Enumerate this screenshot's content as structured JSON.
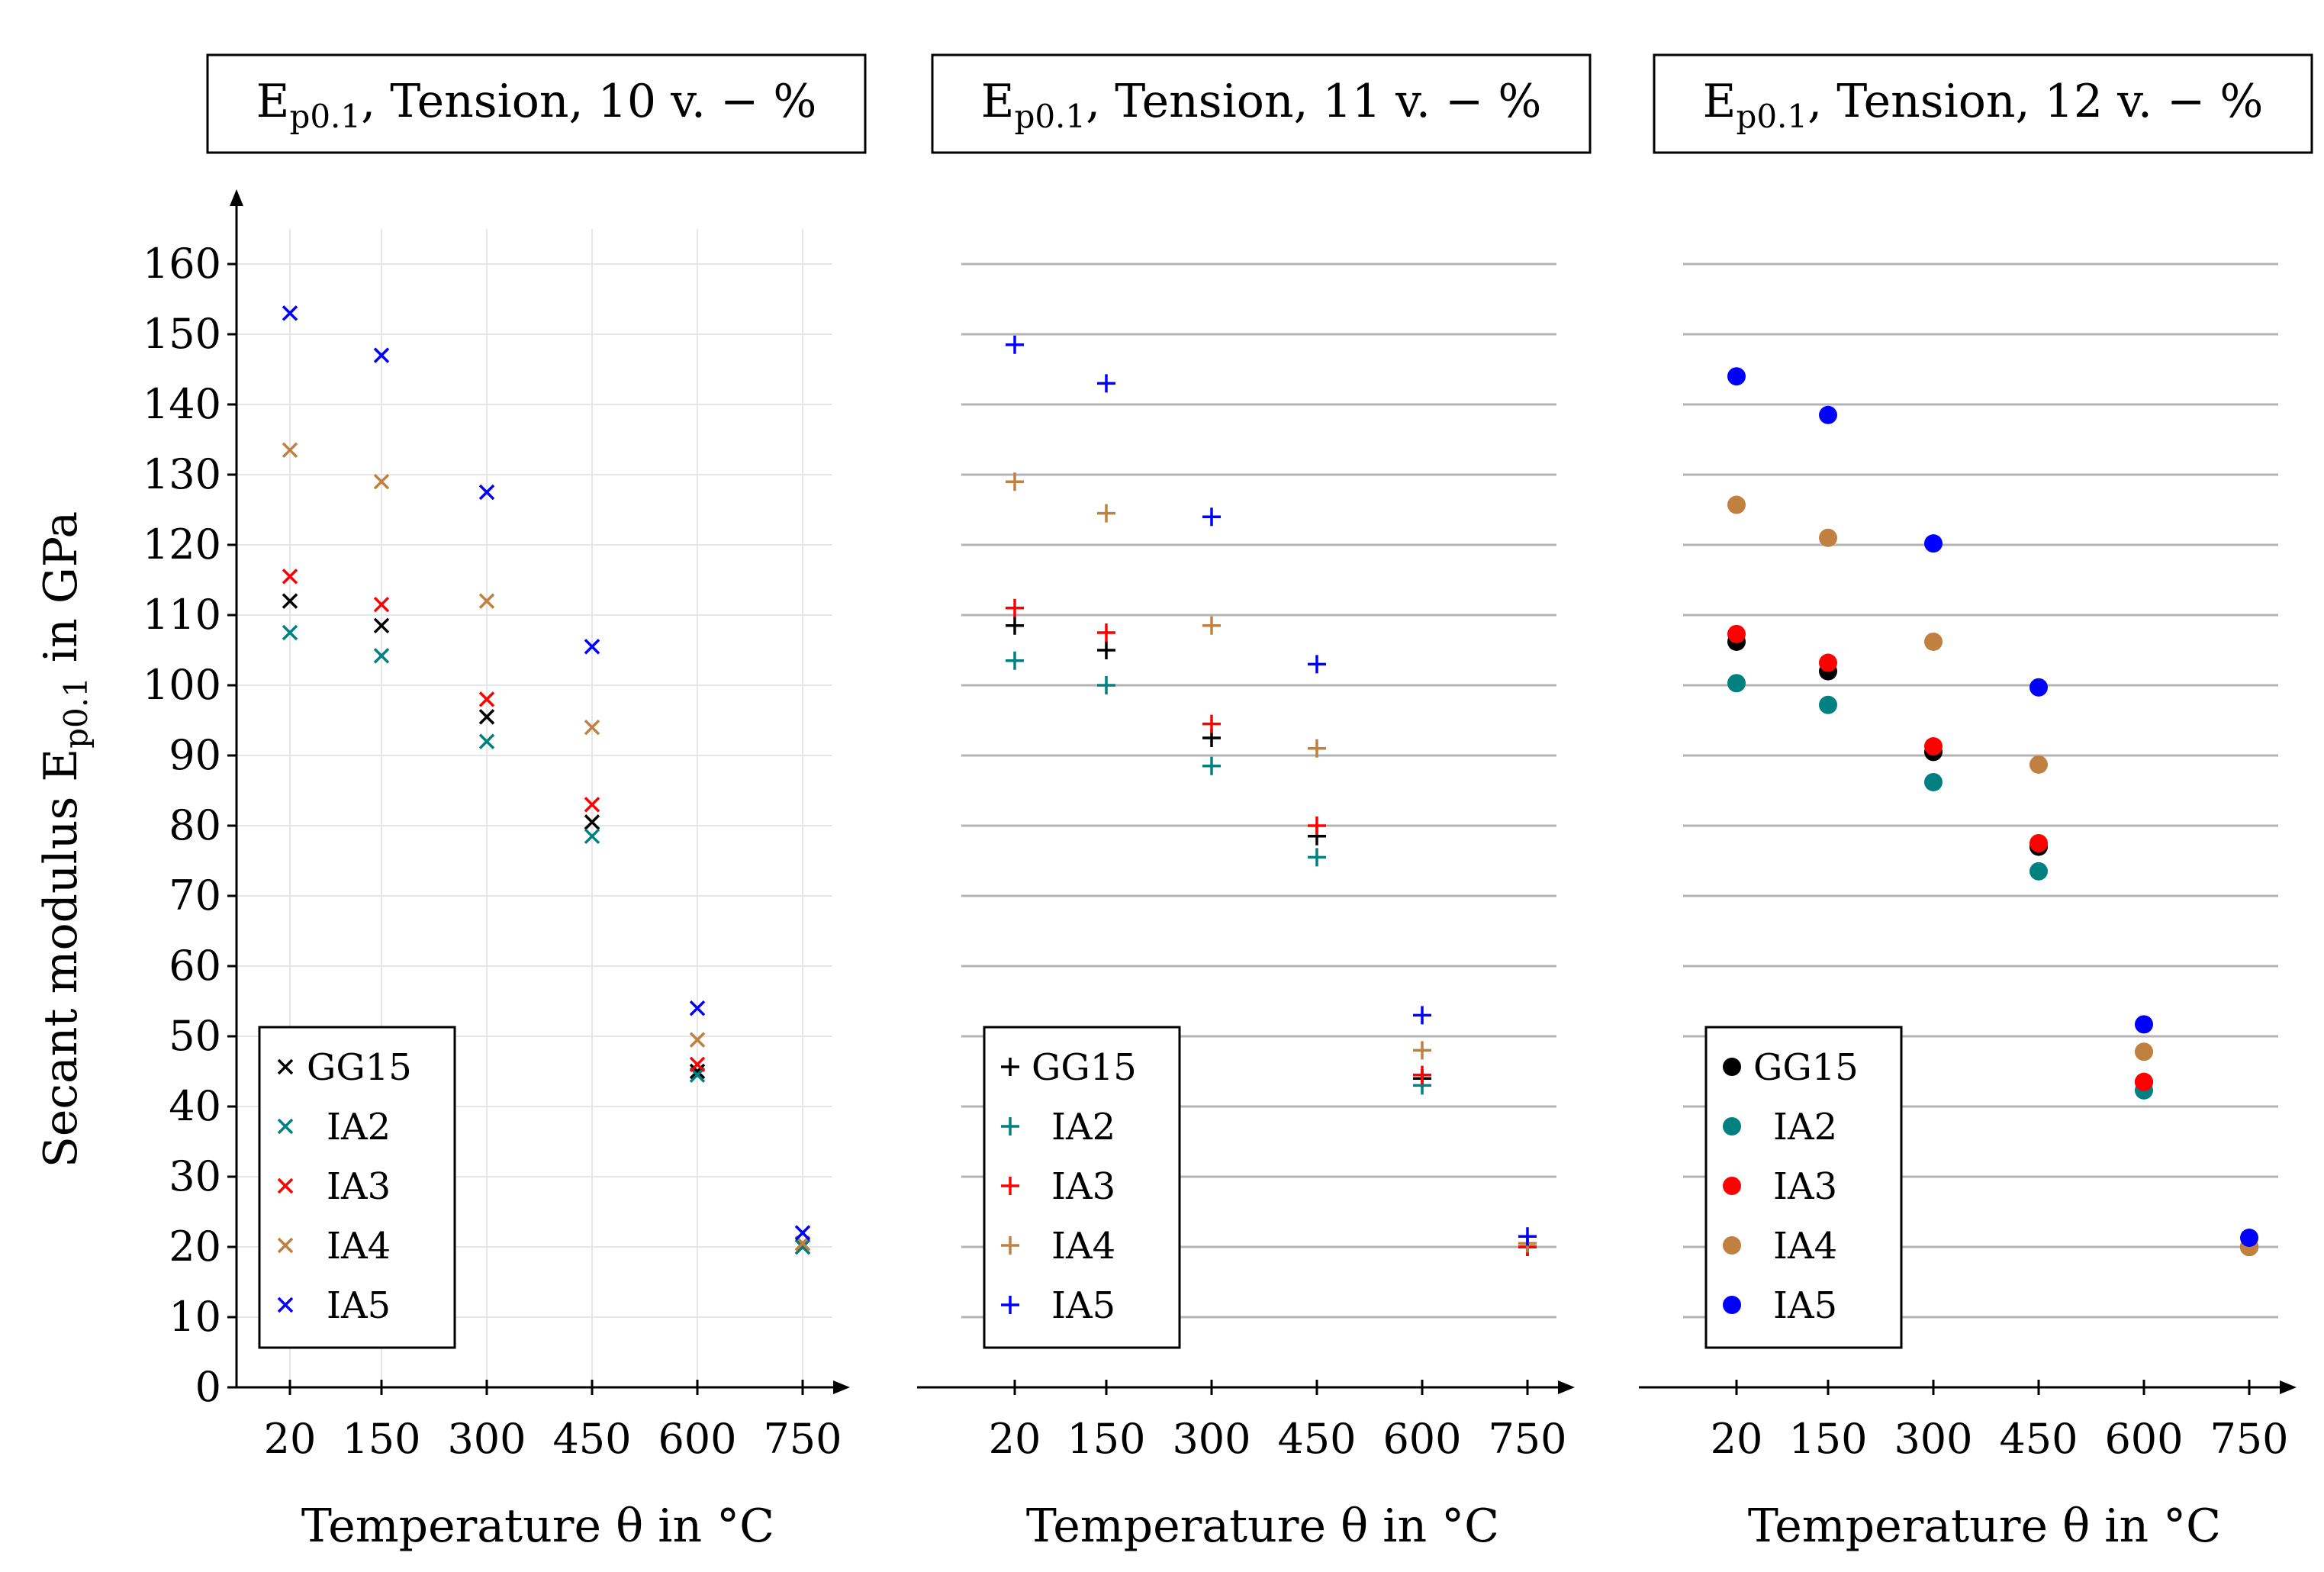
{
  "figure": {
    "ylabel": "Secant modulus E",
    "ylabel_sub": "p0.1",
    "ylabel_tail": " in GPa"
  },
  "chart_data": [
    {
      "type": "scatter",
      "marker": "x",
      "title": {
        "prefix": "E",
        "sub": "p0.1",
        "suffix": ", Tension, 10 v. − %"
      },
      "xlabel": "Temperature θ in °C",
      "ylabel": "Secant modulus Ep0.1 in GPa",
      "categories": [
        "20",
        "150",
        "300",
        "450",
        "600",
        "750"
      ],
      "ylim": [
        0,
        165
      ],
      "yticks": [
        0,
        10,
        20,
        30,
        40,
        50,
        60,
        70,
        80,
        90,
        100,
        110,
        120,
        130,
        140,
        150,
        160
      ],
      "grid": "light",
      "legend_position": "lower-left",
      "series": [
        {
          "name": "GG15",
          "color": "#000000",
          "values": [
            112,
            108.5,
            95.5,
            80.5,
            45,
            20
          ]
        },
        {
          "name": "IA2",
          "color": "#008080",
          "values": [
            107.5,
            104.2,
            92,
            78.5,
            44.5,
            20
          ]
        },
        {
          "name": "IA3",
          "color": "#ff0000",
          "values": [
            115.5,
            111.5,
            98,
            83,
            46,
            20.5
          ]
        },
        {
          "name": "IA4",
          "color": "#bf8040",
          "values": [
            133.5,
            129,
            112,
            94,
            49.5,
            20.5
          ]
        },
        {
          "name": "IA5",
          "color": "#0000ff",
          "values": [
            153,
            147,
            127.5,
            105.5,
            54,
            22
          ]
        }
      ]
    },
    {
      "type": "scatter",
      "marker": "+",
      "title": {
        "prefix": "E",
        "sub": "p0.1",
        "suffix": ", Tension, 11 v. − %"
      },
      "xlabel": "Temperature θ in °C",
      "categories": [
        "20",
        "150",
        "300",
        "450",
        "600",
        "750"
      ],
      "ylim": [
        0,
        165
      ],
      "grid": "dark",
      "legend_position": "lower-left",
      "series": [
        {
          "name": "GG15",
          "color": "#000000",
          "values": [
            108.5,
            105,
            92.5,
            78.5,
            44,
            20
          ]
        },
        {
          "name": "IA2",
          "color": "#008080",
          "values": [
            103.5,
            100,
            88.5,
            75.5,
            43,
            20
          ]
        },
        {
          "name": "IA3",
          "color": "#ff0000",
          "values": [
            111,
            107.5,
            94.5,
            80,
            44.5,
            20
          ]
        },
        {
          "name": "IA4",
          "color": "#bf8040",
          "values": [
            129,
            124.5,
            108.5,
            91,
            48,
            20.5
          ]
        },
        {
          "name": "IA5",
          "color": "#0000ff",
          "values": [
            148.5,
            143,
            124,
            103,
            53,
            21.5
          ]
        }
      ]
    },
    {
      "type": "scatter",
      "marker": "dot",
      "title": {
        "prefix": "E",
        "sub": "p0.1",
        "suffix": ", Tension, 12 v. − %"
      },
      "xlabel": "Temperature θ in °C",
      "categories": [
        "20",
        "150",
        "300",
        "450",
        "600",
        "750"
      ],
      "ylim": [
        0,
        165
      ],
      "grid": "dark",
      "legend_position": "lower-left",
      "series": [
        {
          "name": "GG15",
          "color": "#000000",
          "values": [
            106.2,
            102,
            90.5,
            77,
            43.5,
            20
          ]
        },
        {
          "name": "IA2",
          "color": "#008080",
          "values": [
            100.3,
            97.2,
            86.2,
            73.5,
            42.3,
            20
          ]
        },
        {
          "name": "IA3",
          "color": "#ff0000",
          "values": [
            107.3,
            103.2,
            91.3,
            77.5,
            43.5,
            20
          ]
        },
        {
          "name": "IA4",
          "color": "#bf8040",
          "values": [
            125.7,
            121,
            106.2,
            88.7,
            47.8,
            20
          ]
        },
        {
          "name": "IA5",
          "color": "#0000ff",
          "values": [
            144,
            138.5,
            120.2,
            99.7,
            51.7,
            21.3
          ]
        }
      ]
    }
  ]
}
